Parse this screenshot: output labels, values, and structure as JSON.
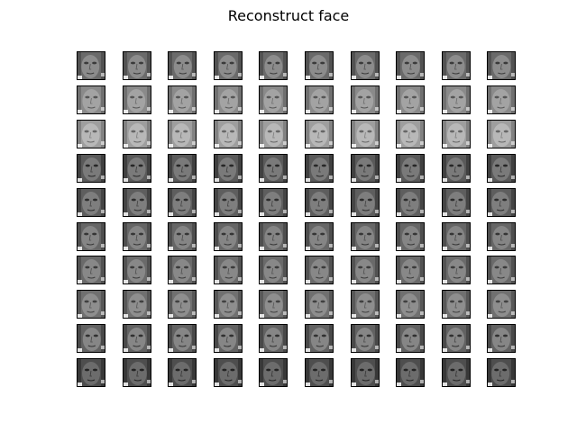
{
  "title": "Reconstruct face",
  "grid": {
    "rows": 10,
    "cols": 10
  },
  "row_tones": [
    {
      "skin": "#8c8c8c",
      "bg": "#6a6a6a",
      "dark": "#3a3a3a"
    },
    {
      "skin": "#a3a3a3",
      "bg": "#8a8a8a",
      "dark": "#555555"
    },
    {
      "skin": "#b8b8b8",
      "bg": "#9e9e9e",
      "dark": "#666666"
    },
    {
      "skin": "#7a7a7a",
      "bg": "#5a5a5a",
      "dark": "#262626"
    },
    {
      "skin": "#7e7e7e",
      "bg": "#5e5e5e",
      "dark": "#2c2c2c"
    },
    {
      "skin": "#858585",
      "bg": "#666666",
      "dark": "#353535"
    },
    {
      "skin": "#888888",
      "bg": "#6a6a6a",
      "dark": "#3a3a3a"
    },
    {
      "skin": "#8e8e8e",
      "bg": "#707070",
      "dark": "#404040"
    },
    {
      "skin": "#868686",
      "bg": "#626262",
      "dark": "#303030"
    },
    {
      "skin": "#6c6c6c",
      "bg": "#4e4e4e",
      "dark": "#222222"
    }
  ]
}
